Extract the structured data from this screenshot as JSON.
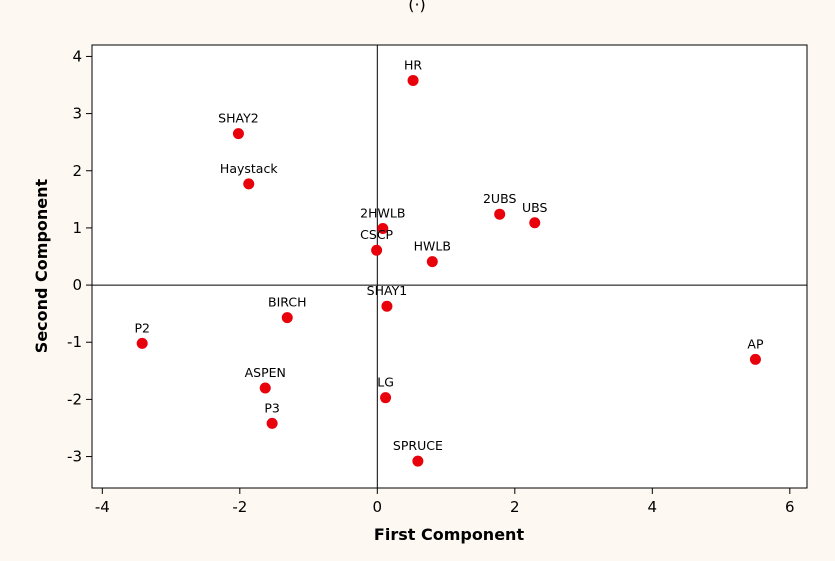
{
  "header": {
    "fragment": "(·)"
  },
  "chart_data": {
    "type": "scatter",
    "title": "",
    "xlabel": "First Component",
    "ylabel": "Second Component",
    "xlim": [
      -4.15,
      6.25
    ],
    "ylim": [
      -3.55,
      4.2
    ],
    "xticks": [
      -4,
      -2,
      0,
      2,
      4,
      6
    ],
    "yticks": [
      -3,
      -2,
      -1,
      0,
      1,
      2,
      3,
      4
    ],
    "reference_lines": {
      "x": 0,
      "y": 0
    },
    "grid": false,
    "marker_color": "#e8000b",
    "points": [
      {
        "label": "HR",
        "x": 0.52,
        "y": 3.58
      },
      {
        "label": "SHAY2",
        "x": -2.02,
        "y": 2.65
      },
      {
        "label": "Haystack",
        "x": -1.87,
        "y": 1.77
      },
      {
        "label": "2HWLB",
        "x": 0.08,
        "y": 0.99
      },
      {
        "label": "CSCP",
        "x": -0.01,
        "y": 0.61
      },
      {
        "label": "2UBS",
        "x": 1.78,
        "y": 1.24
      },
      {
        "label": "UBS",
        "x": 2.29,
        "y": 1.09
      },
      {
        "label": "HWLB",
        "x": 0.8,
        "y": 0.41
      },
      {
        "label": "SHAY1",
        "x": 0.14,
        "y": -0.37
      },
      {
        "label": "BIRCH",
        "x": -1.31,
        "y": -0.57
      },
      {
        "label": "P2",
        "x": -3.42,
        "y": -1.02
      },
      {
        "label": "AP",
        "x": 5.5,
        "y": -1.3
      },
      {
        "label": "ASPEN",
        "x": -1.63,
        "y": -1.8
      },
      {
        "label": "LG",
        "x": 0.12,
        "y": -1.97
      },
      {
        "label": "P3",
        "x": -1.53,
        "y": -2.42
      },
      {
        "label": "SPRUCE",
        "x": 0.59,
        "y": -3.08
      }
    ]
  }
}
